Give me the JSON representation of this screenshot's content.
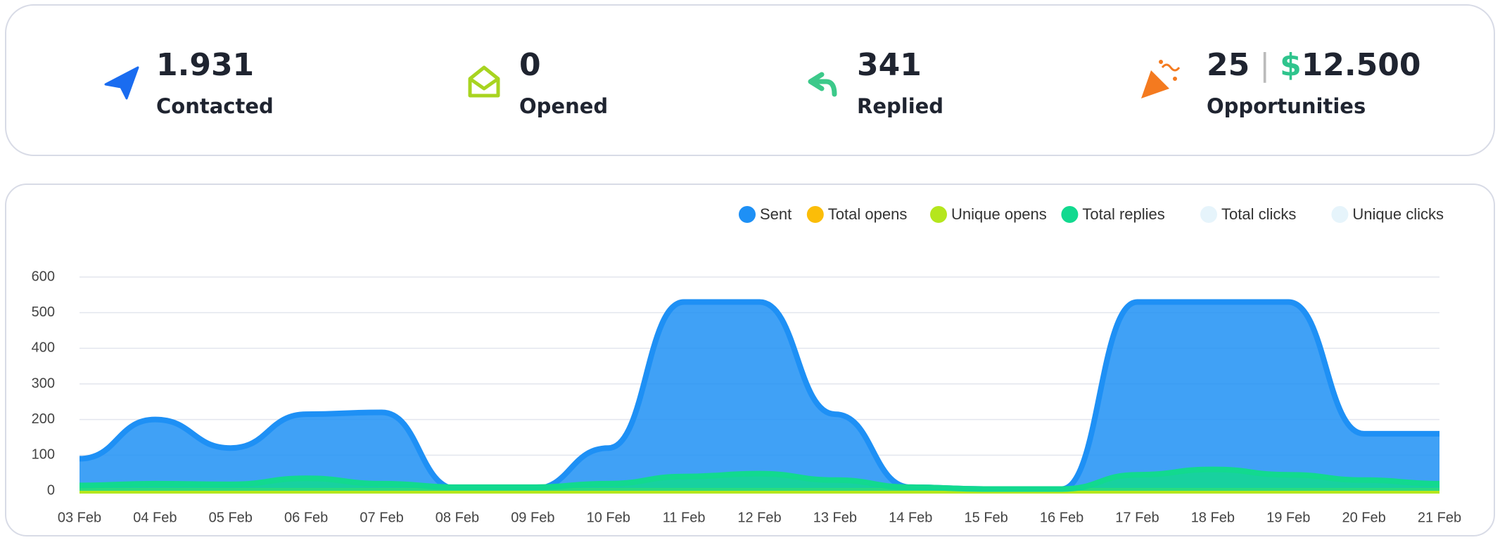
{
  "stats": [
    {
      "value": "1.931",
      "label": "Contacted"
    },
    {
      "value": "0",
      "label": "Opened"
    },
    {
      "value": "341",
      "label": "Replied"
    },
    {
      "value": "25",
      "currency": "$",
      "amount": "12.500",
      "label": "Opportunities"
    }
  ],
  "chart_data": {
    "type": "area",
    "categories": [
      "03 Feb",
      "04 Feb",
      "05 Feb",
      "06 Feb",
      "07 Feb",
      "08 Feb",
      "09 Feb",
      "10 Feb",
      "11 Feb",
      "12 Feb",
      "13 Feb",
      "14 Feb",
      "15 Feb",
      "16 Feb",
      "17 Feb",
      "18 Feb",
      "19 Feb",
      "20 Feb",
      "21 Feb"
    ],
    "series": [
      {
        "name": "Sent",
        "color": "#1e90f5",
        "values": [
          90,
          200,
          120,
          215,
          220,
          5,
          5,
          120,
          530,
          530,
          215,
          10,
          5,
          5,
          530,
          530,
          530,
          160,
          160
        ]
      },
      {
        "name": "Total opens",
        "color": "#fbbd08",
        "values": [
          0,
          0,
          0,
          0,
          0,
          0,
          0,
          0,
          0,
          0,
          0,
          0,
          0,
          0,
          0,
          0,
          0,
          0,
          0
        ]
      },
      {
        "name": "Unique opens",
        "color": "#b5e61d",
        "values": [
          0,
          0,
          0,
          0,
          0,
          0,
          0,
          0,
          0,
          0,
          0,
          0,
          0,
          0,
          0,
          0,
          0,
          0,
          0
        ]
      },
      {
        "name": "Total replies",
        "color": "#12d98f",
        "values": [
          15,
          20,
          18,
          35,
          20,
          10,
          10,
          20,
          40,
          48,
          30,
          10,
          5,
          5,
          45,
          60,
          45,
          30,
          20
        ]
      },
      {
        "name": "Total clicks",
        "color": "#e6f4fb",
        "hidden": true,
        "values": [
          0,
          0,
          0,
          0,
          0,
          0,
          0,
          0,
          0,
          0,
          0,
          0,
          0,
          0,
          0,
          0,
          0,
          0,
          0
        ]
      },
      {
        "name": "Unique clicks",
        "color": "#e6f4fb",
        "hidden": true,
        "values": [
          0,
          0,
          0,
          0,
          0,
          0,
          0,
          0,
          0,
          0,
          0,
          0,
          0,
          0,
          0,
          0,
          0,
          0,
          0
        ]
      }
    ],
    "ylim": [
      0,
      600
    ],
    "yticks": [
      0,
      100,
      200,
      300,
      400,
      500,
      600
    ],
    "grid": true,
    "legend": "top-right"
  }
}
